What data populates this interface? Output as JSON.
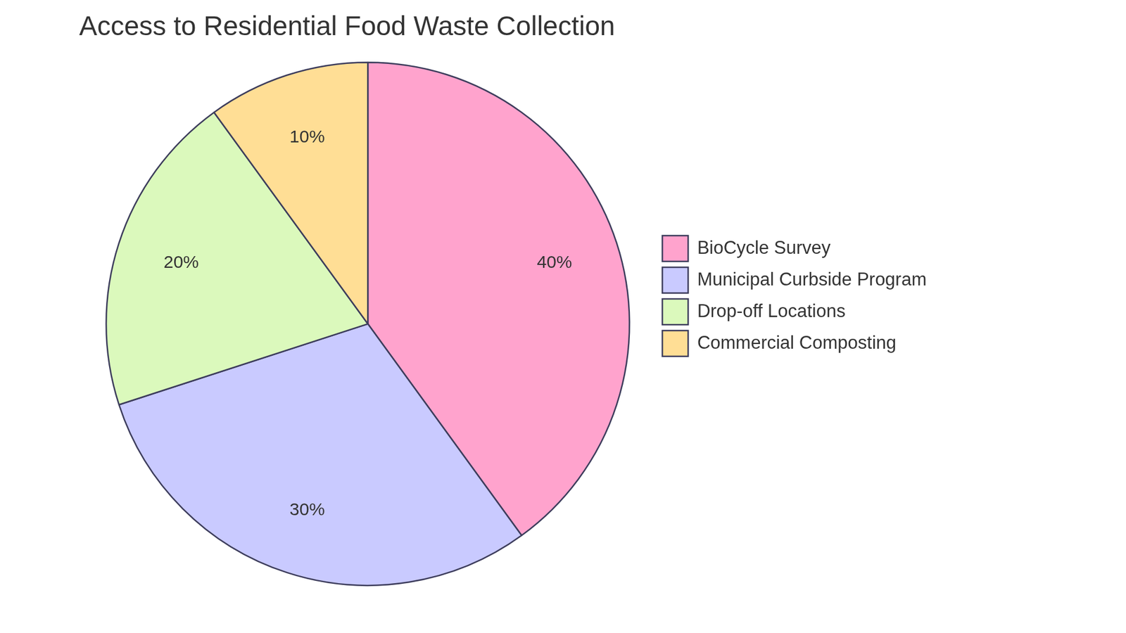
{
  "chart_data": {
    "type": "pie",
    "title": "Access to Residential Food Waste Collection",
    "categories": [
      "BioCycle Survey",
      "Municipal Curbside Program",
      "Drop-off Locations",
      "Commercial Composting"
    ],
    "values": [
      40,
      30,
      20,
      10
    ],
    "value_labels": [
      "40%",
      "30%",
      "20%",
      "10%"
    ],
    "colors": [
      "#ffa3cd",
      "#c9caff",
      "#dbf9bc",
      "#ffde95"
    ],
    "data_labels": true,
    "legend": "right"
  }
}
